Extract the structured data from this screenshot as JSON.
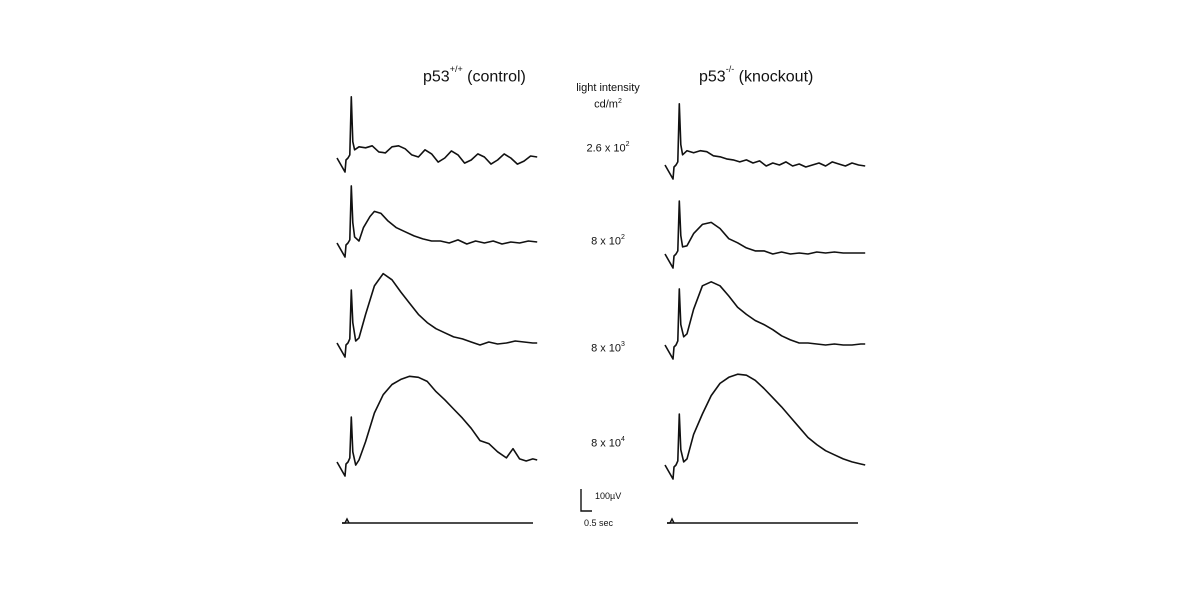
{
  "chart_data": {
    "type": "line",
    "panels": [
      {
        "title_base": "p53",
        "title_sup": "+/+",
        "title_suffix": " (control)"
      },
      {
        "title_base": "p53",
        "title_sup": "-/-",
        "title_suffix": " (knockout)"
      }
    ],
    "intensity_header": {
      "line1": "light intensity",
      "line2_base": "cd/m",
      "line2_sup": "2"
    },
    "intensities": [
      {
        "base": "2.6 x 10",
        "exp": "2"
      },
      {
        "base": "8 x 10",
        "exp": "2"
      },
      {
        "base": "8 x 10",
        "exp": "3"
      },
      {
        "base": "8 x 10",
        "exp": "4"
      }
    ],
    "scale_bar": {
      "amplitude_label": "100µV",
      "time_label": "0.5 sec"
    },
    "traces": {
      "control": [
        [
          [
            0,
            0
          ],
          [
            0.8,
            -3
          ],
          [
            1.5,
            -60
          ],
          [
            2.2,
            -16
          ],
          [
            3,
            -8
          ],
          [
            5,
            -11
          ],
          [
            8,
            -10
          ],
          [
            11,
            -12
          ],
          [
            14,
            -6
          ],
          [
            17,
            -5
          ],
          [
            20,
            -11
          ],
          [
            23,
            -12
          ],
          [
            26,
            -9
          ],
          [
            29,
            -3
          ],
          [
            32,
            -1
          ],
          [
            35,
            -8
          ],
          [
            38,
            -4
          ],
          [
            41,
            4
          ],
          [
            44,
            0
          ],
          [
            47,
            -7
          ],
          [
            50,
            -3
          ],
          [
            53,
            5
          ],
          [
            56,
            2
          ],
          [
            59,
            -4
          ],
          [
            62,
            -1
          ],
          [
            65,
            6
          ],
          [
            68,
            2
          ],
          [
            71,
            -4
          ],
          [
            74,
            0
          ],
          [
            77,
            6
          ],
          [
            80,
            3
          ],
          [
            83,
            -2
          ],
          [
            86,
            -1
          ]
        ],
        [
          [
            0,
            0
          ],
          [
            0.8,
            -3
          ],
          [
            1.5,
            -56
          ],
          [
            2.2,
            -20
          ],
          [
            3,
            -6
          ],
          [
            5,
            -2
          ],
          [
            7,
            -15
          ],
          [
            10,
            -26
          ],
          [
            12,
            -31
          ],
          [
            15,
            -29
          ],
          [
            18,
            -22
          ],
          [
            22,
            -15
          ],
          [
            26,
            -11
          ],
          [
            30,
            -7
          ],
          [
            34,
            -4
          ],
          [
            38,
            -2
          ],
          [
            42,
            -2
          ],
          [
            46,
            0
          ],
          [
            50,
            -3
          ],
          [
            54,
            1
          ],
          [
            58,
            -2
          ],
          [
            62,
            0
          ],
          [
            66,
            -2
          ],
          [
            70,
            1
          ],
          [
            74,
            -1
          ],
          [
            78,
            0
          ],
          [
            82,
            -2
          ],
          [
            86,
            -1
          ]
        ],
        [
          [
            0,
            0
          ],
          [
            0.8,
            -4
          ],
          [
            1.5,
            -52
          ],
          [
            2.2,
            -20
          ],
          [
            3.5,
            -2
          ],
          [
            5,
            -5
          ],
          [
            8,
            -28
          ],
          [
            12,
            -56
          ],
          [
            16,
            -68
          ],
          [
            20,
            -62
          ],
          [
            24,
            -50
          ],
          [
            28,
            -39
          ],
          [
            32,
            -28
          ],
          [
            36,
            -20
          ],
          [
            40,
            -14
          ],
          [
            44,
            -10
          ],
          [
            48,
            -6
          ],
          [
            52,
            -4
          ],
          [
            56,
            -1
          ],
          [
            60,
            2
          ],
          [
            64,
            -1
          ],
          [
            68,
            1
          ],
          [
            72,
            0
          ],
          [
            76,
            -2
          ],
          [
            80,
            -1
          ],
          [
            84,
            0
          ],
          [
            86,
            0
          ]
        ],
        [
          [
            0,
            0
          ],
          [
            0.8,
            -4
          ],
          [
            1.5,
            -44
          ],
          [
            2.2,
            -10
          ],
          [
            3.5,
            3
          ],
          [
            5,
            -2
          ],
          [
            8,
            -20
          ],
          [
            12,
            -48
          ],
          [
            16,
            -66
          ],
          [
            20,
            -76
          ],
          [
            24,
            -81
          ],
          [
            28,
            -84
          ],
          [
            32,
            -83
          ],
          [
            36,
            -79
          ],
          [
            40,
            -69
          ],
          [
            44,
            -61
          ],
          [
            48,
            -52
          ],
          [
            52,
            -43
          ],
          [
            56,
            -33
          ],
          [
            60,
            -21
          ],
          [
            64,
            -18
          ],
          [
            68,
            -10
          ],
          [
            72,
            -4
          ],
          [
            75,
            -13
          ],
          [
            78,
            -3
          ],
          [
            81,
            -1
          ],
          [
            84,
            -3
          ],
          [
            86,
            -2
          ]
        ]
      ],
      "knockout": [
        [
          [
            0,
            0
          ],
          [
            0.8,
            -3
          ],
          [
            1.5,
            -60
          ],
          [
            2.2,
            -20
          ],
          [
            3,
            -10
          ],
          [
            5,
            -14
          ],
          [
            8,
            -12
          ],
          [
            11,
            -14
          ],
          [
            14,
            -13
          ],
          [
            17,
            -9
          ],
          [
            20,
            -8
          ],
          [
            23,
            -6
          ],
          [
            26,
            -5
          ],
          [
            29,
            -3
          ],
          [
            32,
            -5
          ],
          [
            35,
            -2
          ],
          [
            38,
            -4
          ],
          [
            41,
            1
          ],
          [
            44,
            -2
          ],
          [
            47,
            0
          ],
          [
            50,
            -3
          ],
          [
            53,
            1
          ],
          [
            56,
            -1
          ],
          [
            59,
            2
          ],
          [
            62,
            0
          ],
          [
            65,
            -2
          ],
          [
            68,
            1
          ],
          [
            71,
            -3
          ],
          [
            74,
            -1
          ],
          [
            77,
            1
          ],
          [
            80,
            -2
          ],
          [
            83,
            0
          ],
          [
            86,
            1
          ]
        ],
        [
          [
            0,
            0
          ],
          [
            0.8,
            -3
          ],
          [
            1.5,
            -52
          ],
          [
            2.2,
            -18
          ],
          [
            3,
            -7
          ],
          [
            5,
            -8
          ],
          [
            8,
            -20
          ],
          [
            12,
            -29
          ],
          [
            16,
            -31
          ],
          [
            20,
            -25
          ],
          [
            24,
            -15
          ],
          [
            28,
            -11
          ],
          [
            32,
            -6
          ],
          [
            36,
            -3
          ],
          [
            40,
            -3
          ],
          [
            44,
            0
          ],
          [
            48,
            -2
          ],
          [
            52,
            0
          ],
          [
            56,
            -1
          ],
          [
            60,
            0
          ],
          [
            64,
            -2
          ],
          [
            68,
            -1
          ],
          [
            72,
            -2
          ],
          [
            76,
            -1
          ],
          [
            80,
            -1
          ],
          [
            86,
            -1
          ]
        ],
        [
          [
            0,
            0
          ],
          [
            0.8,
            -4
          ],
          [
            1.5,
            -55
          ],
          [
            2.2,
            -20
          ],
          [
            3.5,
            -8
          ],
          [
            5,
            -11
          ],
          [
            8,
            -35
          ],
          [
            12,
            -58
          ],
          [
            16,
            -62
          ],
          [
            20,
            -58
          ],
          [
            24,
            -48
          ],
          [
            28,
            -37
          ],
          [
            32,
            -30
          ],
          [
            36,
            -24
          ],
          [
            40,
            -20
          ],
          [
            44,
            -15
          ],
          [
            48,
            -9
          ],
          [
            52,
            -5
          ],
          [
            56,
            -2
          ],
          [
            60,
            -2
          ],
          [
            64,
            -1
          ],
          [
            68,
            0
          ],
          [
            72,
            -1
          ],
          [
            76,
            0
          ],
          [
            80,
            0
          ],
          [
            84,
            -1
          ],
          [
            86,
            -1
          ]
        ],
        [
          [
            0,
            0
          ],
          [
            0.8,
            -4
          ],
          [
            1.5,
            -50
          ],
          [
            2.2,
            -15
          ],
          [
            3.5,
            -3
          ],
          [
            5,
            -6
          ],
          [
            8,
            -30
          ],
          [
            12,
            -50
          ],
          [
            16,
            -68
          ],
          [
            20,
            -80
          ],
          [
            24,
            -86
          ],
          [
            28,
            -89
          ],
          [
            32,
            -88
          ],
          [
            36,
            -83
          ],
          [
            40,
            -75
          ],
          [
            44,
            -66
          ],
          [
            48,
            -57
          ],
          [
            52,
            -47
          ],
          [
            56,
            -37
          ],
          [
            60,
            -27
          ],
          [
            64,
            -20
          ],
          [
            68,
            -14
          ],
          [
            72,
            -10
          ],
          [
            76,
            -6
          ],
          [
            80,
            -3
          ],
          [
            84,
            -1
          ],
          [
            86,
            0
          ]
        ]
      ]
    }
  }
}
